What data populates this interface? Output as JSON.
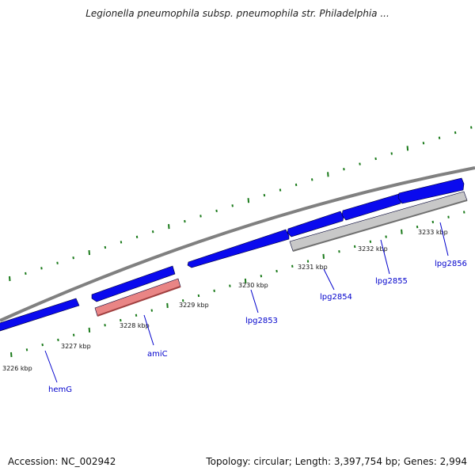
{
  "title": "Legionella pneumophila subsp. pneumophila str. Philadelphia ...",
  "footer": {
    "accession": "Accession: NC_002942",
    "summary": "Topology: circular; Length: 3,397,754 bp; Genes: 2,994"
  },
  "colors": {
    "backbone": "#808080",
    "forward_gene": "#0a0aee",
    "highlight_gene": "#e98585",
    "pseudo_gene": "#c8c8c8",
    "tick": "#1a7a1a",
    "gene_label": "#0000cc"
  },
  "scale": {
    "labels": [
      "3226 kbp",
      "3227 kbp",
      "3228 kbp",
      "3229 kbp",
      "3230 kbp",
      "3231 kbp",
      "3232 kbp",
      "3233 kbp"
    ]
  },
  "genes": [
    {
      "name": "hemG"
    },
    {
      "name": "amiC"
    },
    {
      "name": "lpg2853"
    },
    {
      "name": "lpg2854"
    },
    {
      "name": "lpg2855"
    },
    {
      "name": "lpg2856"
    }
  ]
}
